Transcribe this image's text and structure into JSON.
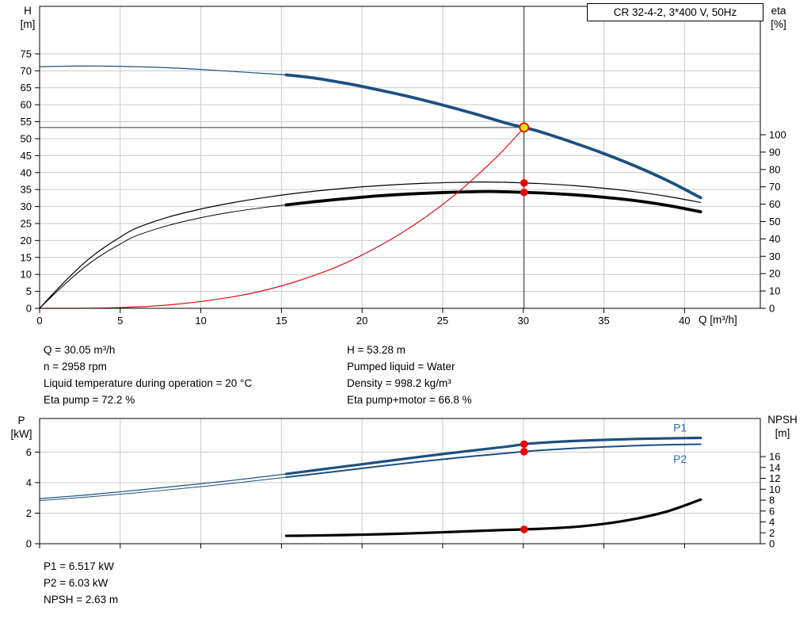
{
  "title_box": "CR 32-4-2, 3*400 V, 50Hz",
  "colors": {
    "blue": "#1b5080",
    "black": "#000000",
    "red": "#dd1111",
    "grid": "#c9c9c9",
    "label_blue": "#2f6db4",
    "marker_fill": "#ffe100",
    "marker_stroke": "#dd1111",
    "dot": "#ee0000",
    "crosshair": "#3a3a3a"
  },
  "info_top": {
    "left": [
      "Q = 30.05 m³/h",
      "n = 2958 rpm",
      "Liquid temperature during operation = 20 °C",
      "Eta pump = 72.2 %"
    ],
    "right": [
      "H = 53.28 m",
      "Pumped liquid = Water",
      "Density = 998.2 kg/m³",
      "Eta pump+motor = 66.8 %"
    ]
  },
  "info_bottom": [
    "P1 = 6.517 kW",
    "P2 = 6.03 kW",
    "NPSH = 2.63 m"
  ],
  "chart_data": [
    {
      "type": "line",
      "name": "head-capacity-and-efficiency",
      "x_axis": {
        "label": "Q [m³/h]",
        "range": [
          0,
          44.7
        ],
        "ticks": [
          0,
          5,
          10,
          15,
          20,
          25,
          30,
          35,
          40
        ],
        "show_labels": true
      },
      "y_left": {
        "title": "H",
        "unit": "[m]",
        "range": [
          0,
          89
        ],
        "ticks": [
          0,
          5,
          10,
          15,
          20,
          25,
          30,
          35,
          40,
          45,
          50,
          55,
          60,
          65,
          70,
          75
        ]
      },
      "y_right": {
        "title": "eta",
        "unit": "[%]",
        "range": [
          0,
          174
        ],
        "ticks": [
          0,
          10,
          20,
          30,
          40,
          50,
          60,
          70,
          80,
          90,
          100
        ]
      },
      "crosshair": {
        "q": 30.05,
        "h": 53.28
      },
      "series": [
        {
          "id": "head-curve-low",
          "axis": "left",
          "color": "blue",
          "width": 1.2,
          "points": [
            [
              0,
              71.2
            ],
            [
              2,
              71.4
            ],
            [
              4,
              71.4
            ],
            [
              6,
              71.2
            ],
            [
              8,
              70.9
            ],
            [
              10,
              70.4
            ],
            [
              12,
              69.8
            ],
            [
              14,
              69.2
            ],
            [
              15.3,
              68.8
            ]
          ]
        },
        {
          "id": "head-curve",
          "axis": "left",
          "color": "blue",
          "width": 3.8,
          "interactable": true,
          "points": [
            [
              15.3,
              68.8
            ],
            [
              17,
              67.9
            ],
            [
              19,
              66.3
            ],
            [
              21,
              64.4
            ],
            [
              23,
              62.3
            ],
            [
              25,
              59.9
            ],
            [
              27,
              57.3
            ],
            [
              29,
              54.5
            ],
            [
              30.05,
              53.28
            ],
            [
              31,
              52.1
            ],
            [
              33,
              49
            ],
            [
              35,
              45.6
            ],
            [
              37,
              41.8
            ],
            [
              39,
              37.5
            ],
            [
              41,
              32.6
            ]
          ]
        },
        {
          "id": "eta-pump-curve",
          "axis": "right",
          "color": "black",
          "width": 1.2,
          "points": [
            [
              0,
              0
            ],
            [
              1,
              10
            ],
            [
              2,
              19.5
            ],
            [
              3,
              28
            ],
            [
              4,
              35
            ],
            [
              5,
              41
            ],
            [
              6,
              46.2
            ],
            [
              8,
              52.6
            ],
            [
              10,
              57.2
            ],
            [
              12,
              60.9
            ],
            [
              14,
              63.9
            ],
            [
              16,
              66.4
            ],
            [
              18,
              68.4
            ],
            [
              20,
              70
            ],
            [
              22,
              71.2
            ],
            [
              24,
              72.1
            ],
            [
              26,
              72.6
            ],
            [
              27.5,
              72.8
            ],
            [
              29,
              72.6
            ],
            [
              30.05,
              72.2
            ],
            [
              31,
              71.9
            ],
            [
              33,
              70.8
            ],
            [
              35,
              69.2
            ],
            [
              37,
              67.1
            ],
            [
              39,
              64.4
            ],
            [
              41,
              61
            ]
          ]
        },
        {
          "id": "eta-pump-motor-curve-low",
          "axis": "right",
          "color": "black",
          "width": 1,
          "points": [
            [
              0,
              0
            ],
            [
              1,
              9
            ],
            [
              2,
              17.5
            ],
            [
              3,
              25.2
            ],
            [
              4,
              31.6
            ],
            [
              5,
              37
            ],
            [
              6,
              41.8
            ],
            [
              8,
              47.8
            ],
            [
              10,
              52.2
            ],
            [
              12,
              55.6
            ],
            [
              14,
              58.2
            ],
            [
              15.3,
              59.6
            ]
          ]
        },
        {
          "id": "eta-pump-motor-curve",
          "axis": "right",
          "color": "black",
          "width": 3.8,
          "points": [
            [
              15.3,
              59.6
            ],
            [
              17,
              61.4
            ],
            [
              19,
              63.2
            ],
            [
              21,
              64.8
            ],
            [
              23,
              65.9
            ],
            [
              25,
              66.7
            ],
            [
              27,
              67.2
            ],
            [
              28,
              67.3
            ],
            [
              29,
              67.1
            ],
            [
              30.05,
              66.8
            ],
            [
              31,
              66.5
            ],
            [
              33,
              65.5
            ],
            [
              35,
              64
            ],
            [
              37,
              62
            ],
            [
              39,
              59.2
            ],
            [
              41,
              55.6
            ]
          ]
        },
        {
          "id": "system-curve",
          "axis": "left",
          "color": "red",
          "width": 1.2,
          "points": [
            [
              0,
              0
            ],
            [
              4,
              0.1
            ],
            [
              8,
              1
            ],
            [
              12,
              3.4
            ],
            [
              15,
              6.6
            ],
            [
              18,
              11.4
            ],
            [
              20,
              15.7
            ],
            [
              22,
              20.9
            ],
            [
              24,
              27.1
            ],
            [
              26,
              34.4
            ],
            [
              28,
              43
            ],
            [
              29,
              47.8
            ],
            [
              30.05,
              53.28
            ]
          ]
        }
      ],
      "markers": [
        {
          "type": "dot",
          "q": 30.05,
          "v": 72.2,
          "axis": "right",
          "name": "eta-pump-duty-dot"
        },
        {
          "type": "dot",
          "q": 30.05,
          "v": 66.8,
          "axis": "right",
          "name": "eta-pump-motor-duty-dot"
        },
        {
          "type": "op",
          "q": 30.05,
          "v": 53.28,
          "axis": "left",
          "name": "operating-point-marker"
        }
      ],
      "labels": []
    },
    {
      "type": "line",
      "name": "power-and-npsh",
      "x_axis": {
        "label": "",
        "range": [
          0,
          44.7
        ],
        "ticks": [
          0,
          5,
          10,
          15,
          20,
          25,
          30,
          35,
          40
        ],
        "show_labels": false
      },
      "y_left": {
        "title": "P",
        "unit": "[kW]",
        "range": [
          0,
          8.2
        ],
        "ticks": [
          0,
          2,
          4,
          6
        ]
      },
      "y_right": {
        "title": "NPSH",
        "unit": "[m]",
        "range": [
          0,
          23
        ],
        "ticks": [
          0,
          2,
          4,
          6,
          8,
          10,
          12,
          14,
          16
        ]
      },
      "series": [
        {
          "id": "p1-curve-low",
          "axis": "left",
          "color": "blue",
          "width": 1.2,
          "points": [
            [
              0,
              2.95
            ],
            [
              3,
              3.2
            ],
            [
              6,
              3.5
            ],
            [
              9,
              3.82
            ],
            [
              12,
              4.15
            ],
            [
              15.3,
              4.57
            ]
          ]
        },
        {
          "id": "p1-curve",
          "axis": "left",
          "color": "blue",
          "width": 3.2,
          "points": [
            [
              15.3,
              4.57
            ],
            [
              17,
              4.8
            ],
            [
              19,
              5.07
            ],
            [
              21,
              5.34
            ],
            [
              23,
              5.61
            ],
            [
              25,
              5.87
            ],
            [
              27,
              6.12
            ],
            [
              29,
              6.36
            ],
            [
              30.05,
              6.517
            ],
            [
              31,
              6.6
            ],
            [
              33,
              6.72
            ],
            [
              35,
              6.8
            ],
            [
              37,
              6.86
            ],
            [
              39,
              6.9
            ],
            [
              41,
              6.93
            ]
          ]
        },
        {
          "id": "p2-curve-low",
          "axis": "left",
          "color": "blue",
          "width": 1,
          "points": [
            [
              0,
              2.82
            ],
            [
              3,
              3.06
            ],
            [
              6,
              3.33
            ],
            [
              9,
              3.63
            ],
            [
              12,
              3.96
            ],
            [
              15.3,
              4.35
            ]
          ]
        },
        {
          "id": "p2-curve",
          "axis": "left",
          "color": "blue",
          "width": 2,
          "points": [
            [
              15.3,
              4.35
            ],
            [
              17,
              4.56
            ],
            [
              19,
              4.81
            ],
            [
              21,
              5.06
            ],
            [
              23,
              5.3
            ],
            [
              25,
              5.53
            ],
            [
              27,
              5.74
            ],
            [
              29,
              5.93
            ],
            [
              30.05,
              6.03
            ],
            [
              31,
              6.11
            ],
            [
              33,
              6.24
            ],
            [
              35,
              6.34
            ],
            [
              37,
              6.42
            ],
            [
              39,
              6.48
            ],
            [
              41,
              6.51
            ]
          ]
        },
        {
          "id": "npsh-curve",
          "axis": "right",
          "color": "black",
          "width": 3.2,
          "points": [
            [
              15.3,
              1.45
            ],
            [
              17,
              1.5
            ],
            [
              19,
              1.6
            ],
            [
              21,
              1.73
            ],
            [
              23,
              1.9
            ],
            [
              25,
              2.1
            ],
            [
              27,
              2.33
            ],
            [
              29,
              2.54
            ],
            [
              30.05,
              2.63
            ],
            [
              31,
              2.73
            ],
            [
              33,
              3.05
            ],
            [
              35,
              3.65
            ],
            [
              37,
              4.6
            ],
            [
              39,
              6
            ],
            [
              41,
              8.1
            ]
          ]
        }
      ],
      "markers": [
        {
          "type": "dot",
          "q": 30.05,
          "v": 6.517,
          "axis": "left",
          "name": "p1-duty-dot"
        },
        {
          "type": "dot",
          "q": 30.05,
          "v": 6.03,
          "axis": "left",
          "name": "p2-duty-dot"
        },
        {
          "type": "dot",
          "q": 30.05,
          "v": 2.63,
          "axis": "right",
          "name": "npsh-duty-dot"
        }
      ],
      "labels": [
        {
          "text": "P1",
          "q": 39.3,
          "v": 7.35,
          "axis": "left",
          "color": "label_blue"
        },
        {
          "text": "P2",
          "q": 39.3,
          "v": 5.3,
          "axis": "left",
          "color": "label_blue"
        }
      ]
    }
  ]
}
